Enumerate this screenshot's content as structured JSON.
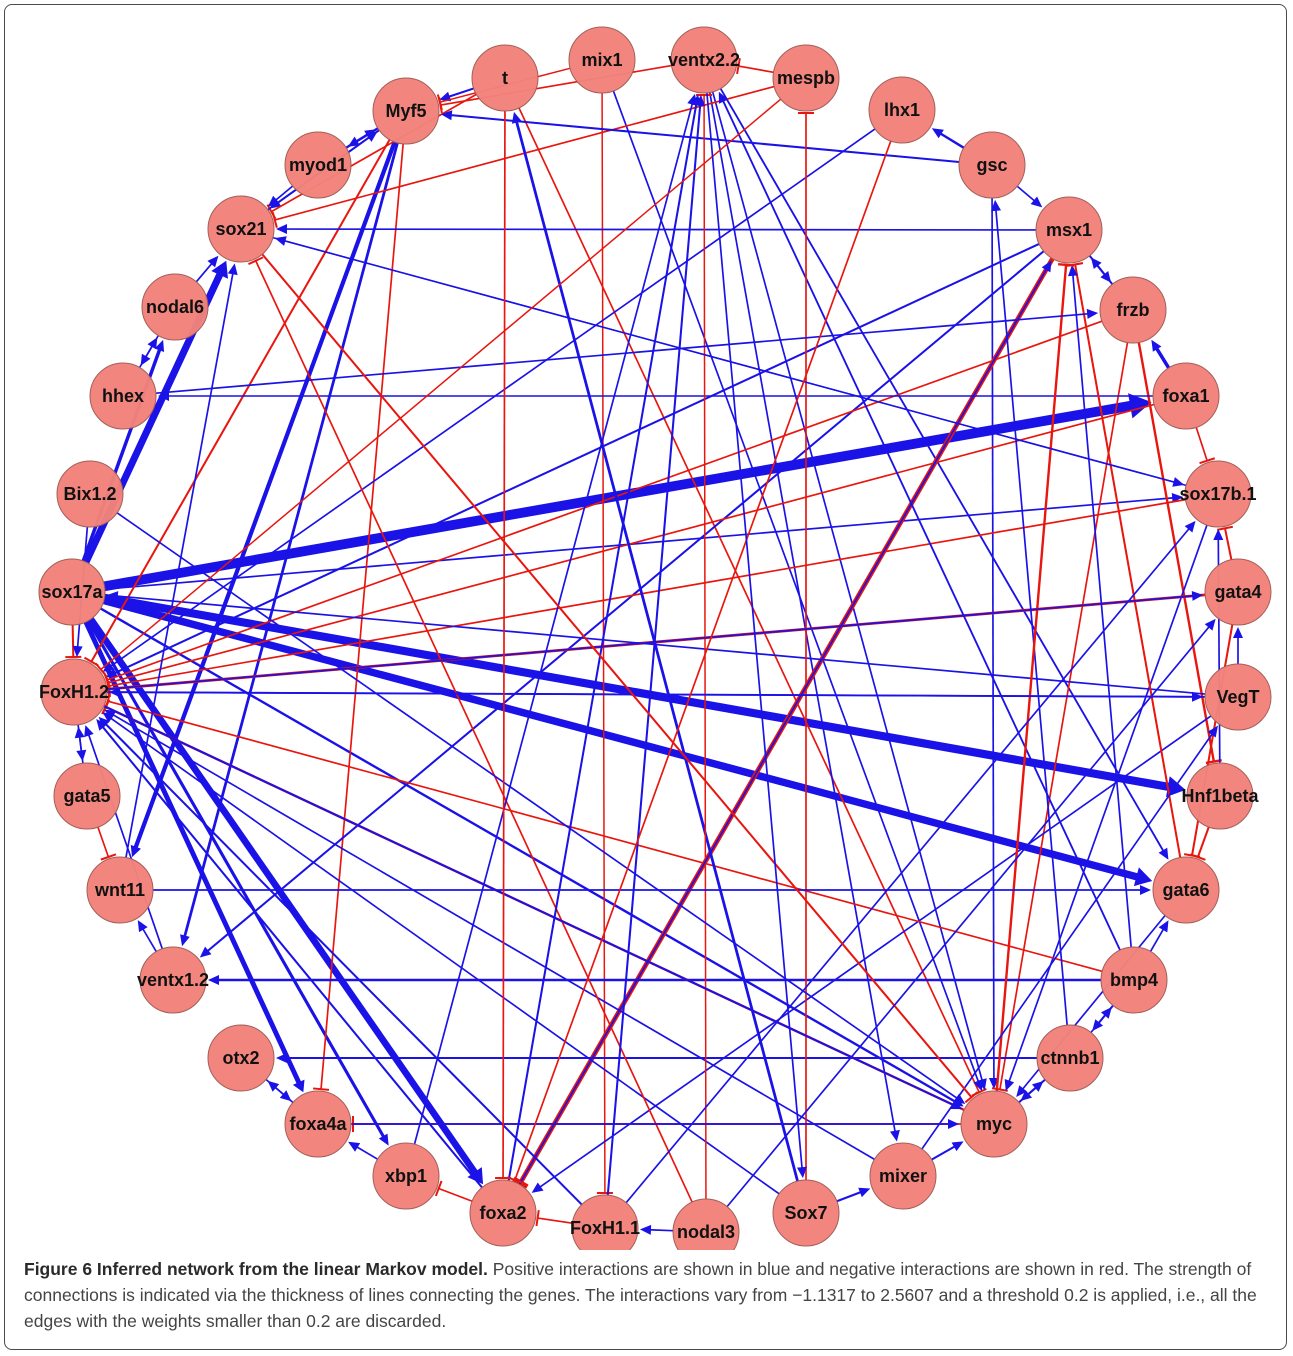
{
  "colors": {
    "positive": "#1a12e6",
    "negative": "#e8160e",
    "node_fill": "#f2837b",
    "node_stroke": "#a05a55"
  },
  "nodes": [
    {
      "id": "t",
      "label": "t"
    },
    {
      "id": "mix1",
      "label": "mix1"
    },
    {
      "id": "ventx2.2",
      "label": "ventx2.2"
    },
    {
      "id": "mespb",
      "label": "mespb"
    },
    {
      "id": "lhx1",
      "label": "lhx1"
    },
    {
      "id": "gsc",
      "label": "gsc"
    },
    {
      "id": "msx1",
      "label": "msx1"
    },
    {
      "id": "frzb",
      "label": "frzb"
    },
    {
      "id": "foxa1",
      "label": "foxa1"
    },
    {
      "id": "sox17b.1",
      "label": "sox17b.1"
    },
    {
      "id": "gata4",
      "label": "gata4"
    },
    {
      "id": "VegT",
      "label": "VegT"
    },
    {
      "id": "Hnf1beta",
      "label": "Hnf1beta"
    },
    {
      "id": "gata6",
      "label": "gata6"
    },
    {
      "id": "bmp4",
      "label": "bmp4"
    },
    {
      "id": "ctnnb1",
      "label": "ctnnb1"
    },
    {
      "id": "myc",
      "label": "myc"
    },
    {
      "id": "mixer",
      "label": "mixer"
    },
    {
      "id": "Sox7",
      "label": "Sox7"
    },
    {
      "id": "nodal3",
      "label": "nodal3"
    },
    {
      "id": "FoxH1.1",
      "label": "FoxH1.1"
    },
    {
      "id": "foxa2",
      "label": "foxa2"
    },
    {
      "id": "xbp1",
      "label": "xbp1"
    },
    {
      "id": "foxa4a",
      "label": "foxa4a"
    },
    {
      "id": "otx2",
      "label": "otx2"
    },
    {
      "id": "ventx1.2",
      "label": "ventx1.2"
    },
    {
      "id": "wnt11",
      "label": "wnt11"
    },
    {
      "id": "gata5",
      "label": "gata5"
    },
    {
      "id": "FoxH1.2",
      "label": "FoxH1.2"
    },
    {
      "id": "sox17a",
      "label": "sox17a"
    },
    {
      "id": "Bix1.2",
      "label": "Bix1.2"
    },
    {
      "id": "hhex",
      "label": "hhex"
    },
    {
      "id": "nodal6",
      "label": "nodal6"
    },
    {
      "id": "sox21",
      "label": "sox21"
    },
    {
      "id": "myod1",
      "label": "myod1"
    },
    {
      "id": "Myf5",
      "label": "Myf5"
    }
  ],
  "edges": [
    {
      "from": "sox17a",
      "to": "foxa1",
      "sign": "+",
      "weight": 2.5607
    },
    {
      "from": "sox17a",
      "to": "Hnf1beta",
      "sign": "+",
      "weight": 2.1
    },
    {
      "from": "sox17a",
      "to": "gata6",
      "sign": "+",
      "weight": 1.9
    },
    {
      "from": "sox17a",
      "to": "foxa2",
      "sign": "+",
      "weight": 1.7
    },
    {
      "from": "sox17a",
      "to": "foxa4a",
      "sign": "+",
      "weight": 1.2
    },
    {
      "from": "sox17a",
      "to": "sox21",
      "sign": "+",
      "weight": 1.8
    },
    {
      "from": "sox17a",
      "to": "nodal6",
      "sign": "+",
      "weight": 0.8
    },
    {
      "from": "sox17a",
      "to": "xbp1",
      "sign": "+",
      "weight": 0.7
    },
    {
      "from": "sox17a",
      "to": "myc",
      "sign": "+",
      "weight": 0.5
    },
    {
      "from": "sox17a",
      "to": "sox17b.1",
      "sign": "+",
      "weight": 0.3
    },
    {
      "from": "sox17a",
      "to": "FoxH1.2",
      "sign": "-",
      "weight": 0.4
    },
    {
      "from": "Myf5",
      "to": "wnt11",
      "sign": "+",
      "weight": 1.0
    },
    {
      "from": "Myf5",
      "to": "ventx1.2",
      "sign": "+",
      "weight": 0.6
    },
    {
      "from": "Myf5",
      "to": "myod1",
      "sign": "+",
      "weight": 0.5
    },
    {
      "from": "Myf5",
      "to": "sox21",
      "sign": "+",
      "weight": 0.4
    },
    {
      "from": "Myf5",
      "to": "FoxH1.2",
      "sign": "-",
      "weight": 0.4
    },
    {
      "from": "Myf5",
      "to": "foxa4a",
      "sign": "-",
      "weight": 0.3
    },
    {
      "from": "t",
      "to": "Myf5",
      "sign": "+",
      "weight": 0.4
    },
    {
      "from": "t",
      "to": "myc",
      "sign": "-",
      "weight": 0.3
    },
    {
      "from": "t",
      "to": "sox21",
      "sign": "-",
      "weight": 0.3
    },
    {
      "from": "mix1",
      "to": "FoxH1.1",
      "sign": "-",
      "weight": 0.25
    },
    {
      "from": "mix1",
      "to": "myc",
      "sign": "+",
      "weight": 0.3
    },
    {
      "from": "ventx2.2",
      "to": "Myf5",
      "sign": "-",
      "weight": 0.3
    },
    {
      "from": "ventx2.2",
      "to": "gata6",
      "sign": "+",
      "weight": 0.35
    },
    {
      "from": "ventx2.2",
      "to": "myc",
      "sign": "+",
      "weight": 0.3
    },
    {
      "from": "ventx2.2",
      "to": "mixer",
      "sign": "+",
      "weight": 0.3
    },
    {
      "from": "mespb",
      "to": "sox21",
      "sign": "-",
      "weight": 0.3
    },
    {
      "from": "mespb",
      "to": "ventx2.2",
      "sign": "-",
      "weight": 0.3
    },
    {
      "from": "lhx1",
      "to": "FoxH1.2",
      "sign": "+",
      "weight": 0.3
    },
    {
      "from": "gsc",
      "to": "lhx1",
      "sign": "+",
      "weight": 0.5
    },
    {
      "from": "gsc",
      "to": "Myf5",
      "sign": "+",
      "weight": 0.4
    },
    {
      "from": "gsc",
      "to": "msx1",
      "sign": "+",
      "weight": 0.3
    },
    {
      "from": "gsc",
      "to": "myc",
      "sign": "+",
      "weight": 0.3
    },
    {
      "from": "msx1",
      "to": "foxa2",
      "sign": "-",
      "weight": 1.1317
    },
    {
      "from": "msx1",
      "to": "sox21",
      "sign": "+",
      "weight": 0.3
    },
    {
      "from": "msx1",
      "to": "FoxH1.2",
      "sign": "+",
      "weight": 0.4
    },
    {
      "from": "msx1",
      "to": "frzb",
      "sign": "+",
      "weight": 0.4
    },
    {
      "from": "msx1",
      "to": "ventx1.2",
      "sign": "+",
      "weight": 0.4
    },
    {
      "from": "frzb",
      "to": "msx1",
      "sign": "+",
      "weight": 0.4
    },
    {
      "from": "frzb",
      "to": "Hnf1beta",
      "sign": "-",
      "weight": 0.5
    },
    {
      "from": "frzb",
      "to": "FoxH1.2",
      "sign": "-",
      "weight": 0.3
    },
    {
      "from": "frzb",
      "to": "myc",
      "sign": "-",
      "weight": 0.3
    },
    {
      "from": "foxa1",
      "to": "frzb",
      "sign": "+",
      "weight": 0.8
    },
    {
      "from": "foxa1",
      "to": "sox17b.1",
      "sign": "-",
      "weight": 0.3
    },
    {
      "from": "foxa1",
      "to": "FoxH1.2",
      "sign": "-",
      "weight": 0.3
    },
    {
      "from": "foxa1",
      "to": "hhex",
      "sign": "+",
      "weight": 0.25
    },
    {
      "from": "sox17b.1",
      "to": "FoxH1.2",
      "sign": "-",
      "weight": 0.3
    },
    {
      "from": "sox17b.1",
      "to": "myc",
      "sign": "+",
      "weight": 0.3
    },
    {
      "from": "sox17b.1",
      "to": "sox21",
      "sign": "+",
      "weight": 0.25
    },
    {
      "from": "gata4",
      "to": "FoxH1.2",
      "sign": "-",
      "weight": 0.6
    },
    {
      "from": "gata4",
      "to": "sox17b.1",
      "sign": "-",
      "weight": 0.4
    },
    {
      "from": "gata4",
      "to": "gata6",
      "sign": "-",
      "weight": 0.4
    },
    {
      "from": "VegT",
      "to": "FoxH1.2",
      "sign": "+",
      "weight": 0.3
    },
    {
      "from": "VegT",
      "to": "gata4",
      "sign": "+",
      "weight": 0.3
    },
    {
      "from": "VegT",
      "to": "sox17a",
      "sign": "+",
      "weight": 0.3
    },
    {
      "from": "VegT",
      "to": "foxa2",
      "sign": "+",
      "weight": 0.3
    },
    {
      "from": "Hnf1beta",
      "to": "gata6",
      "sign": "-",
      "weight": 0.4
    },
    {
      "from": "Hnf1beta",
      "to": "sox17b.1",
      "sign": "+",
      "weight": 0.3
    },
    {
      "from": "gata6",
      "to": "myc",
      "sign": "+",
      "weight": 0.3
    },
    {
      "from": "gata6",
      "to": "msx1",
      "sign": "-",
      "weight": 0.4
    },
    {
      "from": "bmp4",
      "to": "ventx1.2",
      "sign": "+",
      "weight": 0.5
    },
    {
      "from": "bmp4",
      "to": "msx1",
      "sign": "+",
      "weight": 0.3
    },
    {
      "from": "bmp4",
      "to": "ventx2.2",
      "sign": "+",
      "weight": 0.35
    },
    {
      "from": "bmp4",
      "to": "gata6",
      "sign": "+",
      "weight": 0.3
    },
    {
      "from": "bmp4",
      "to": "ctnnb1",
      "sign": "+",
      "weight": 0.4
    },
    {
      "from": "bmp4",
      "to": "FoxH1.2",
      "sign": "-",
      "weight": 0.3
    },
    {
      "from": "ctnnb1",
      "to": "otx2",
      "sign": "+",
      "weight": 0.4
    },
    {
      "from": "ctnnb1",
      "to": "myc",
      "sign": "+",
      "weight": 0.4
    },
    {
      "from": "ctnnb1",
      "to": "gsc",
      "sign": "+",
      "weight": 0.3
    },
    {
      "from": "ctnnb1",
      "to": "bmp4",
      "sign": "+",
      "weight": 0.3
    },
    {
      "from": "myc",
      "to": "msx1",
      "sign": "-",
      "weight": 0.5
    },
    {
      "from": "myc",
      "to": "FoxH1.2",
      "sign": "-",
      "weight": 0.5
    },
    {
      "from": "myc",
      "to": "foxa4a",
      "sign": "-",
      "weight": 0.3
    },
    {
      "from": "myc",
      "to": "ctnnb1",
      "sign": "+",
      "weight": 0.4
    },
    {
      "from": "mixer",
      "to": "myc",
      "sign": "+",
      "weight": 0.4
    },
    {
      "from": "mixer",
      "to": "FoxH1.2",
      "sign": "+",
      "weight": 0.3
    },
    {
      "from": "mixer",
      "to": "VegT",
      "sign": "+",
      "weight": 0.3
    },
    {
      "from": "Sox7",
      "to": "t",
      "sign": "+",
      "weight": 0.6
    },
    {
      "from": "Sox7",
      "to": "mixer",
      "sign": "+",
      "weight": 0.4
    },
    {
      "from": "Sox7",
      "to": "mespb",
      "sign": "-",
      "weight": 0.3
    },
    {
      "from": "Sox7",
      "to": "FoxH1.2",
      "sign": "+",
      "weight": 0.3
    },
    {
      "from": "nodal3",
      "to": "ventx2.2",
      "sign": "-",
      "weight": 0.25
    },
    {
      "from": "nodal3",
      "to": "sox21",
      "sign": "-",
      "weight": 0.3
    },
    {
      "from": "nodal3",
      "to": "FoxH1.1",
      "sign": "+",
      "weight": 0.3
    },
    {
      "from": "FoxH1.1",
      "to": "ventx2.2",
      "sign": "+",
      "weight": 0.4
    },
    {
      "from": "FoxH1.1",
      "to": "FoxH1.2",
      "sign": "+",
      "weight": 0.4
    },
    {
      "from": "FoxH1.1",
      "to": "foxa2",
      "sign": "-",
      "weight": 0.3
    },
    {
      "from": "FoxH1.1",
      "to": "sox17b.1",
      "sign": "+",
      "weight": 0.3
    },
    {
      "from": "foxa2",
      "to": "FoxH1.2",
      "sign": "+",
      "weight": 0.4
    },
    {
      "from": "foxa2",
      "to": "ventx2.2",
      "sign": "+",
      "weight": 0.4
    },
    {
      "from": "foxa2",
      "to": "msx1",
      "sign": "+",
      "weight": 0.3
    },
    {
      "from": "foxa2",
      "to": "xbp1",
      "sign": "-",
      "weight": 0.3
    },
    {
      "from": "xbp1",
      "to": "foxa4a",
      "sign": "+",
      "weight": 0.3
    },
    {
      "from": "xbp1",
      "to": "ventx2.2",
      "sign": "+",
      "weight": 0.3
    },
    {
      "from": "foxa4a",
      "to": "otx2",
      "sign": "+",
      "weight": 0.3
    },
    {
      "from": "foxa4a",
      "to": "myc",
      "sign": "+",
      "weight": 0.3
    },
    {
      "from": "otx2",
      "to": "foxa4a",
      "sign": "+",
      "weight": 0.3
    },
    {
      "from": "ventx1.2",
      "to": "wnt11",
      "sign": "+",
      "weight": 0.3
    },
    {
      "from": "ventx1.2",
      "to": "FoxH1.2",
      "sign": "+",
      "weight": 0.3
    },
    {
      "from": "wnt11",
      "to": "sox21",
      "sign": "+",
      "weight": 0.3
    },
    {
      "from": "wnt11",
      "to": "gata6",
      "sign": "+",
      "weight": 0.3
    },
    {
      "from": "gata5",
      "to": "wnt11",
      "sign": "-",
      "weight": 0.3
    },
    {
      "from": "gata5",
      "to": "FoxH1.2",
      "sign": "+",
      "weight": 0.3
    },
    {
      "from": "FoxH1.2",
      "to": "gata5",
      "sign": "+",
      "weight": 0.3
    },
    {
      "from": "FoxH1.2",
      "to": "VegT",
      "sign": "+",
      "weight": 0.35
    },
    {
      "from": "FoxH1.2",
      "to": "myc",
      "sign": "+",
      "weight": 0.4
    },
    {
      "from": "FoxH1.2",
      "to": "gata4",
      "sign": "+",
      "weight": 0.3
    },
    {
      "from": "Bix1.2",
      "to": "FoxH1.2",
      "sign": "+",
      "weight": 0.3
    },
    {
      "from": "Bix1.2",
      "to": "myc",
      "sign": "+",
      "weight": 0.3
    },
    {
      "from": "hhex",
      "to": "nodal6",
      "sign": "+",
      "weight": 0.3
    },
    {
      "from": "hhex",
      "to": "frzb",
      "sign": "+",
      "weight": 0.3
    },
    {
      "from": "nodal6",
      "to": "sox21",
      "sign": "+",
      "weight": 0.3
    },
    {
      "from": "nodal6",
      "to": "hhex",
      "sign": "+",
      "weight": 0.3
    },
    {
      "from": "sox21",
      "to": "myc",
      "sign": "-",
      "weight": 0.4
    },
    {
      "from": "sox21",
      "to": "Myf5",
      "sign": "+",
      "weight": 0.3
    },
    {
      "from": "sox21",
      "to": "sox17b.1",
      "sign": "+",
      "weight": 0.25
    },
    {
      "from": "myod1",
      "to": "Myf5",
      "sign": "+",
      "weight": 0.5
    },
    {
      "from": "myod1",
      "to": "sox21",
      "sign": "+",
      "weight": 0.3
    },
    {
      "from": "lhx1",
      "to": "foxa2",
      "sign": "-",
      "weight": 0.3
    },
    {
      "from": "mespb",
      "to": "FoxH1.2",
      "sign": "-",
      "weight": 0.25
    },
    {
      "from": "nodal3",
      "to": "gata4",
      "sign": "+",
      "weight": 0.3
    },
    {
      "from": "t",
      "to": "foxa2",
      "sign": "-",
      "weight": 0.3
    },
    {
      "from": "ventx2.2",
      "to": "Sox7",
      "sign": "+",
      "weight": 0.3
    },
    {
      "from": "mix1",
      "to": "Myf5",
      "sign": "-",
      "weight": 0.25
    }
  ],
  "caption": {
    "title": "Figure 6 Inferred network from the linear Markov model.",
    "text": " Positive interactions are shown in blue and negative interactions are shown in red. The strength of connections is indicated via the thickness of lines connecting the genes. The interactions vary from −1.1317 to 2.5607 and a threshold 0.2 is applied, i.e., all the edges with the weights smaller than 0.2 are discarded."
  }
}
